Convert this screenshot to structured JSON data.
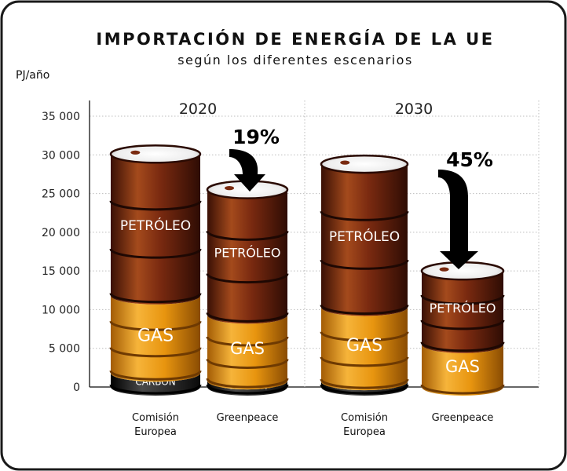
{
  "title": "IMPORTACIÓN DE ENERGÍA DE LA UE",
  "subtitle": "según los diferentes escenarios",
  "unit": "PJ/año",
  "colors": {
    "petroleo": "#7a2a10",
    "gas": "#e8950f",
    "carbon": "#1a1a1a",
    "frame": "#1a1a1a",
    "grid": "#bdbdbd"
  },
  "chart_data": {
    "type": "bar",
    "stacked": true,
    "ylim": [
      0,
      35000
    ],
    "yticks": [
      "0",
      "5 000",
      "10 000",
      "15 000",
      "20 000",
      "25 000",
      "30 000",
      "35 000"
    ],
    "groups": [
      "2020",
      "2030"
    ],
    "categories": [
      {
        "group": "2020",
        "label_lines": [
          "Comisión",
          "Europea"
        ]
      },
      {
        "group": "2020",
        "label_lines": [
          "Greenpeace"
        ]
      },
      {
        "group": "2030",
        "label_lines": [
          "Comisión",
          "Europea"
        ]
      },
      {
        "group": "2030",
        "label_lines": [
          "Greenpeace"
        ]
      }
    ],
    "series": [
      {
        "name": "CARBÓN",
        "color": "#1a1a1a",
        "values": [
          1800,
          800,
          700,
          0
        ]
      },
      {
        "name": "GAS",
        "color": "#e8950f",
        "values": [
          10000,
          8500,
          9600,
          5500
        ]
      },
      {
        "name": "PETRÓLEO",
        "color": "#7a2a10",
        "values": [
          18300,
          16200,
          18500,
          9500
        ]
      }
    ],
    "annotations": [
      {
        "label": "19%",
        "bar_index": 1,
        "arrow": "down"
      },
      {
        "label": "45%",
        "bar_index": 3,
        "arrow": "down"
      }
    ]
  }
}
